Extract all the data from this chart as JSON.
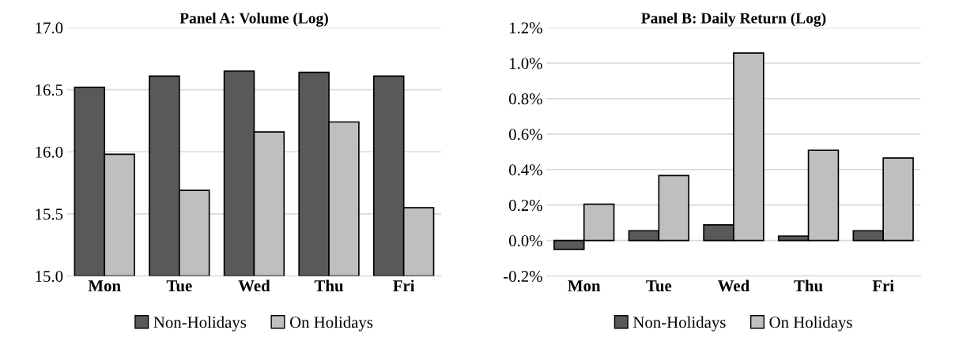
{
  "chart_data": [
    {
      "type": "bar",
      "title": "Panel A: Volume (Log)",
      "categories": [
        "Mon",
        "Tue",
        "Wed",
        "Thu",
        "Fri"
      ],
      "series": [
        {
          "name": "Non-Holidays",
          "color": "#595959",
          "values": [
            16.52,
            16.61,
            16.65,
            16.64,
            16.61
          ]
        },
        {
          "name": "On Holidays",
          "color": "#bfbfbf",
          "values": [
            15.98,
            15.69,
            16.16,
            16.24,
            15.55
          ]
        }
      ],
      "ylim": [
        15.0,
        17.0
      ],
      "yticks": [
        {
          "value": 15.0,
          "label": "15.0"
        },
        {
          "value": 15.5,
          "label": "15.5"
        },
        {
          "value": 16.0,
          "label": "16.0"
        },
        {
          "value": 16.5,
          "label": "16.5"
        },
        {
          "value": 17.0,
          "label": "17.0"
        }
      ],
      "grid": "y",
      "legend": "bottom"
    },
    {
      "type": "bar",
      "title": "Panel B: Daily Return (Log)",
      "categories": [
        "Mon",
        "Tue",
        "Wed",
        "Thu",
        "Fri"
      ],
      "series": [
        {
          "name": "Non-Holidays",
          "color": "#595959",
          "values": [
            -0.05,
            0.055,
            0.088,
            0.025,
            0.055
          ]
        },
        {
          "name": "On Holidays",
          "color": "#bfbfbf",
          "values": [
            0.205,
            0.366,
            1.057,
            0.509,
            0.465
          ]
        }
      ],
      "ylim": [
        -0.2,
        1.2
      ],
      "yticks": [
        {
          "value": -0.2,
          "label": "-0.2%"
        },
        {
          "value": 0.0,
          "label": "0.0%"
        },
        {
          "value": 0.2,
          "label": "0.2%"
        },
        {
          "value": 0.4,
          "label": "0.4%"
        },
        {
          "value": 0.6,
          "label": "0.6%"
        },
        {
          "value": 0.8,
          "label": "0.8%"
        },
        {
          "value": 1.0,
          "label": "1.0%"
        },
        {
          "value": 1.2,
          "label": "1.2%"
        }
      ],
      "grid": "y",
      "legend": "bottom"
    }
  ]
}
